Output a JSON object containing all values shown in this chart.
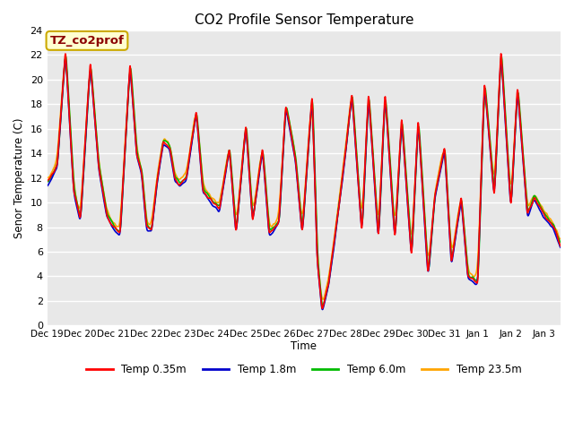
{
  "title": "CO2 Profile Sensor Temperature",
  "ylabel": "Senor Temperature (C)",
  "xlabel": "Time",
  "annotation_text": "TZ_co2prof",
  "annotation_color": "#8B0000",
  "annotation_bg": "#FFFFD0",
  "annotation_border": "#CCAA00",
  "ylim": [
    0,
    24
  ],
  "n_days": 15.5,
  "x_tick_labels": [
    "Dec 19",
    "Dec 20",
    "Dec 21",
    "Dec 22",
    "Dec 23",
    "Dec 24",
    "Dec 25",
    "Dec 26",
    "Dec 27",
    "Dec 28",
    "Dec 29",
    "Dec 30",
    "Dec 31",
    "Jan 1",
    "Jan 2",
    "Jan 3"
  ],
  "legend_labels": [
    "Temp 0.35m",
    "Temp 1.8m",
    "Temp 6.0m",
    "Temp 23.5m"
  ],
  "line_colors": [
    "#FF0000",
    "#0000CC",
    "#00BB00",
    "#FFA500"
  ],
  "line_width": 1.2,
  "plot_bg_color": "#E8E8E8",
  "grid_color": "#FFFFFF",
  "yticks": [
    0,
    2,
    4,
    6,
    8,
    10,
    12,
    14,
    16,
    18,
    20,
    22,
    24
  ],
  "figsize": [
    6.4,
    4.8
  ],
  "dpi": 100,
  "key_times": [
    0,
    0.3,
    0.55,
    0.8,
    1.0,
    1.3,
    1.55,
    1.8,
    2.0,
    2.2,
    2.5,
    2.7,
    2.85,
    3.0,
    3.15,
    3.3,
    3.5,
    3.7,
    3.85,
    4.0,
    4.2,
    4.5,
    4.7,
    5.0,
    5.2,
    5.5,
    5.7,
    6.0,
    6.2,
    6.5,
    6.7,
    7.0,
    7.2,
    7.5,
    7.7,
    8.0,
    8.15,
    8.3,
    8.5,
    8.7,
    9.0,
    9.2,
    9.5,
    9.7,
    10.0,
    10.2,
    10.5,
    10.7,
    11.0,
    11.2,
    11.5,
    11.7,
    12.0,
    12.2,
    12.5,
    12.7,
    13.0,
    13.2,
    13.5,
    13.7,
    14.0,
    14.2,
    14.5,
    14.7,
    15.0,
    15.3,
    15.5
  ],
  "base_vals": [
    11.5,
    13.0,
    22.5,
    11.0,
    8.5,
    21.5,
    13.0,
    9.0,
    8.0,
    7.5,
    21.5,
    14.0,
    12.5,
    8.0,
    7.8,
    11.5,
    15.0,
    14.5,
    12.0,
    11.5,
    12.0,
    17.5,
    11.0,
    10.0,
    9.5,
    14.5,
    7.5,
    16.5,
    8.5,
    14.5,
    7.5,
    8.5,
    18.0,
    13.5,
    7.5,
    19.0,
    5.5,
    1.2,
    3.5,
    7.5,
    14.0,
    19.0,
    7.5,
    19.0,
    7.0,
    19.0,
    7.0,
    17.0,
    5.5,
    17.0,
    4.0,
    10.5,
    14.5,
    5.0,
    10.5,
    4.0,
    3.5,
    20.0,
    10.5,
    22.5,
    9.5,
    19.5,
    9.0,
    10.5,
    9.0,
    8.0,
    6.5
  ]
}
